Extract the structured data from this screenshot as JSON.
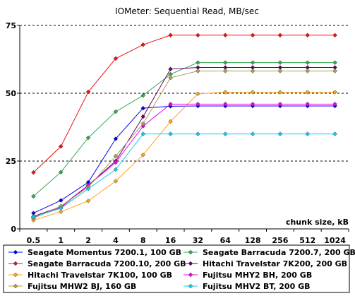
{
  "chart_data": {
    "type": "line",
    "title": "IOMeter: Sequential Read, MB/sec",
    "xlabel": "chunk size, kB",
    "ylabel": "",
    "categories": [
      "0.5",
      "1",
      "2",
      "4",
      "8",
      "16",
      "32",
      "64",
      "128",
      "256",
      "512",
      "1024"
    ],
    "ylim": [
      0,
      75
    ],
    "yticks": [
      "0",
      "25",
      "50",
      "75"
    ],
    "grid": "dashed horizontal at 25 and 50",
    "legend_position": "bottom",
    "series": [
      {
        "name": "Seagate Momentus 7200.1, 100 GB",
        "color": "#0000ee",
        "values": [
          5.8,
          10.5,
          17.2,
          33.2,
          44.5,
          45.2,
          45.3,
          45.3,
          45.3,
          45.3,
          45.3,
          45.3
        ]
      },
      {
        "name": "Seagate Barracuda 7200.7, 200 GB",
        "color": "#33a852",
        "values": [
          12.0,
          20.9,
          33.6,
          43.2,
          49.2,
          57.0,
          61.3,
          61.3,
          61.3,
          61.3,
          61.3,
          61.3
        ]
      },
      {
        "name": "Seagate Barracuda 7200.10, 200 GB",
        "color": "#ee1111",
        "values": [
          20.8,
          30.4,
          50.5,
          62.8,
          67.9,
          71.4,
          71.4,
          71.4,
          71.4,
          71.4,
          71.4,
          71.4
        ]
      },
      {
        "name": "Hitachi Travelstar 7K200, 200 GB",
        "color": "#660066",
        "values": [
          4.6,
          8.2,
          16.1,
          25.0,
          41.4,
          58.9,
          59.5,
          59.5,
          59.5,
          59.5,
          59.5,
          59.5
        ]
      },
      {
        "name": "Hitachi Travelstar 7K100, 100 GB",
        "color": "#ffa31a",
        "values": [
          3.2,
          6.3,
          10.3,
          17.6,
          27.3,
          39.6,
          49.8,
          50.4,
          50.4,
          50.4,
          50.4,
          50.4
        ]
      },
      {
        "name": "Fujitsu MHY2 BH, 200 GB",
        "color": "#ee00ee",
        "values": [
          4.2,
          7.9,
          16.0,
          24.5,
          37.9,
          46.0,
          46.0,
          46.0,
          46.0,
          46.0,
          46.0,
          46.0
        ]
      },
      {
        "name": "Fujitsu MHW2 BJ, 160 GB",
        "color": "#aaa055",
        "values": [
          3.9,
          8.4,
          15.4,
          26.8,
          38.8,
          55.7,
          58.2,
          58.2,
          58.2,
          58.2,
          58.2,
          58.2
        ]
      },
      {
        "name": "Fujitsu MHV2 BT, 200 GB",
        "color": "#11ccee",
        "values": [
          4.4,
          7.6,
          14.8,
          21.9,
          35.0,
          35.0,
          35.0,
          35.0,
          35.0,
          35.0,
          35.0,
          35.0
        ]
      }
    ]
  }
}
